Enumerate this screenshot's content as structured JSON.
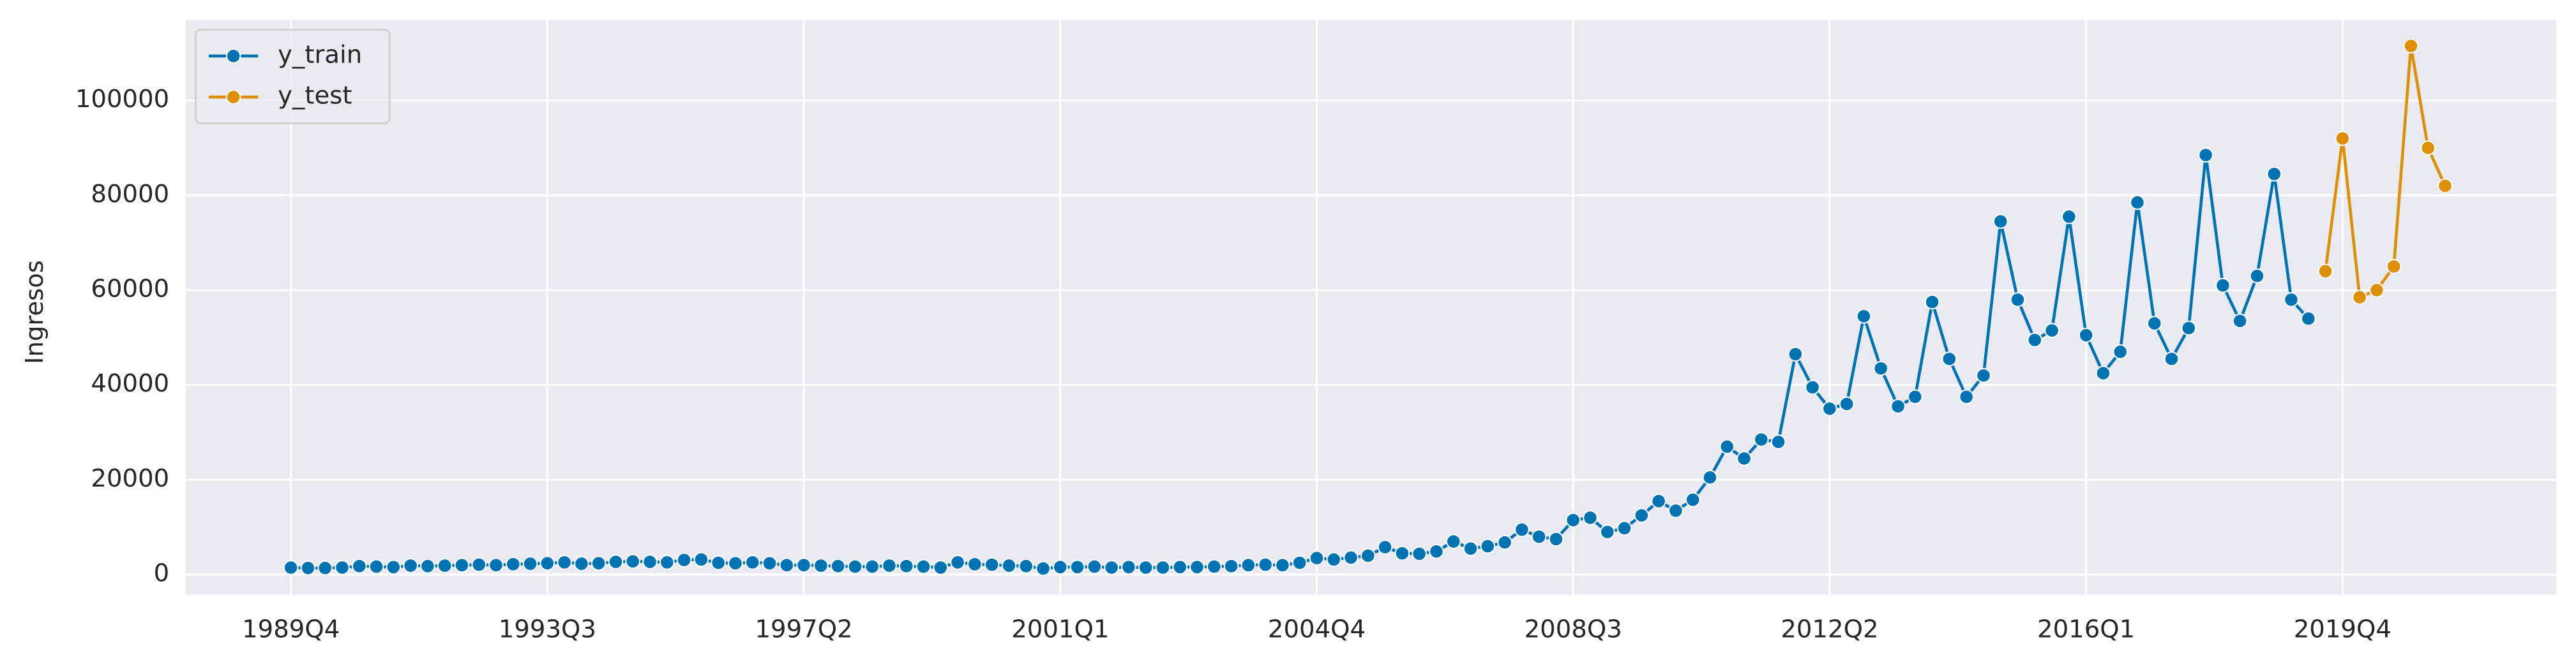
{
  "chart_data": {
    "type": "line",
    "ylabel": "Ingresos",
    "categories": [
      "1989Q4",
      null,
      null,
      null,
      null,
      null,
      null,
      null,
      null,
      null,
      null,
      null,
      null,
      null,
      null,
      "1993Q3",
      null,
      null,
      null,
      null,
      null,
      null,
      null,
      null,
      null,
      null,
      null,
      null,
      null,
      null,
      "1997Q2",
      null,
      null,
      null,
      null,
      null,
      null,
      null,
      null,
      null,
      null,
      null,
      null,
      null,
      null,
      "2001Q1",
      null,
      null,
      null,
      null,
      null,
      null,
      null,
      null,
      null,
      null,
      null,
      null,
      null,
      null,
      "2004Q4",
      null,
      null,
      null,
      null,
      null,
      null,
      null,
      null,
      null,
      null,
      null,
      null,
      null,
      null,
      "2008Q3",
      null,
      null,
      null,
      null,
      null,
      null,
      null,
      null,
      null,
      null,
      null,
      null,
      null,
      null,
      "2012Q2",
      null,
      null,
      null,
      null,
      null,
      null,
      null,
      null,
      null,
      null,
      null,
      null,
      null,
      null,
      "2016Q1",
      null,
      null,
      null,
      null,
      null,
      null,
      null,
      null,
      null,
      null,
      null,
      null,
      null,
      null,
      "2019Q4",
      null,
      null,
      null,
      null,
      null,
      null
    ],
    "series": [
      {
        "name": "y_train",
        "color": "#0173b2",
        "values": [
          1500,
          1400,
          1400,
          1500,
          1800,
          1700,
          1600,
          1900,
          1800,
          1900,
          2000,
          2100,
          2000,
          2200,
          2300,
          2400,
          2600,
          2300,
          2400,
          2700,
          2800,
          2700,
          2600,
          3100,
          3200,
          2500,
          2400,
          2600,
          2400,
          2000,
          2000,
          1900,
          1800,
          1700,
          1700,
          1900,
          1800,
          1700,
          1500,
          2600,
          2200,
          2100,
          1900,
          1800,
          1300,
          1600,
          1600,
          1700,
          1500,
          1600,
          1500,
          1500,
          1600,
          1600,
          1700,
          1800,
          2000,
          2100,
          2000,
          2500,
          3500,
          3200,
          3600,
          4000,
          5800,
          4500,
          4400,
          4900,
          7000,
          5500,
          6000,
          6800,
          9500,
          8000,
          7500,
          11500,
          12000,
          9000,
          9800,
          12500,
          15500,
          13500,
          15800,
          20500,
          27000,
          24500,
          28500,
          28000,
          46500,
          39500,
          35000,
          36000,
          54500,
          43500,
          35500,
          37500,
          57500,
          45500,
          37500,
          42000,
          74500,
          58000,
          49500,
          51500,
          75500,
          50500,
          42500,
          47000,
          78500,
          53000,
          45500,
          52000,
          88500,
          61000,
          53500,
          63000,
          84500,
          58000,
          54000,
          null,
          null,
          null,
          null,
          null,
          null,
          null,
          null
        ]
      },
      {
        "name": "y_test",
        "color": "#de8f05",
        "values": [
          null,
          null,
          null,
          null,
          null,
          null,
          null,
          null,
          null,
          null,
          null,
          null,
          null,
          null,
          null,
          null,
          null,
          null,
          null,
          null,
          null,
          null,
          null,
          null,
          null,
          null,
          null,
          null,
          null,
          null,
          null,
          null,
          null,
          null,
          null,
          null,
          null,
          null,
          null,
          null,
          null,
          null,
          null,
          null,
          null,
          null,
          null,
          null,
          null,
          null,
          null,
          null,
          null,
          null,
          null,
          null,
          null,
          null,
          null,
          null,
          null,
          null,
          null,
          null,
          null,
          null,
          null,
          null,
          null,
          null,
          null,
          null,
          null,
          null,
          null,
          null,
          null,
          null,
          null,
          null,
          null,
          null,
          null,
          null,
          null,
          null,
          null,
          null,
          null,
          null,
          null,
          null,
          null,
          null,
          null,
          null,
          null,
          null,
          null,
          null,
          null,
          null,
          null,
          null,
          null,
          null,
          null,
          null,
          null,
          null,
          null,
          null,
          null,
          null,
          null,
          null,
          null,
          null,
          null,
          64000,
          92000,
          58500,
          60000,
          65000,
          111500,
          90000,
          82000
        ]
      }
    ],
    "xlim": [
      -6.15,
      132.5
    ],
    "ylim": [
      -4200,
      117000
    ],
    "yticks": [
      0,
      20000,
      40000,
      60000,
      80000,
      100000
    ],
    "grid": true,
    "legend": "upper left"
  }
}
